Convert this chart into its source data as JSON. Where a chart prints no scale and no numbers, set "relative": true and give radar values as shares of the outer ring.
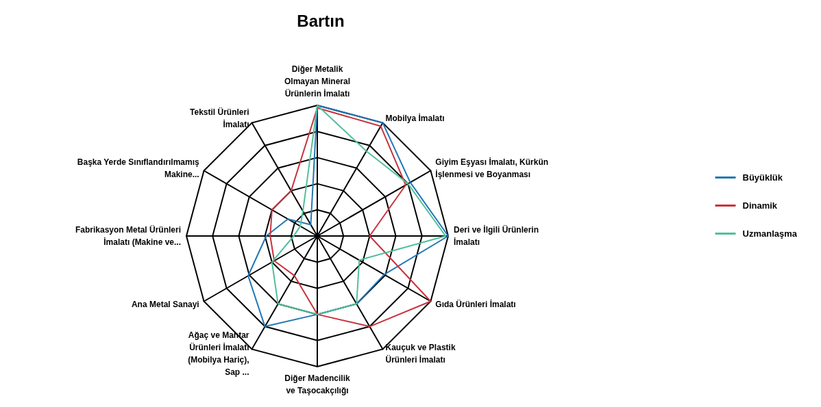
{
  "chart_data": {
    "type": "radar",
    "title": "Bartın",
    "relative": true,
    "legend": "right",
    "marker": "none",
    "line_style": "solid",
    "categories": [
      "Diğer Metalik Olmayan Mineral Ürünlerin İmalatı",
      "Mobilya İmalatı",
      "Giyim Eşyası İmalatı, Kürkün İşlenmesi ve Boyanması",
      "Deri ve İlgili Ürünlerin İmalatı",
      "Gıda Ürünleri İmalatı",
      "Kauçuk ve Plastik Ürünleri İmalatı",
      "Diğer Madencilik ve Taşocakçılığı",
      "Ağaç ve Mantar Ürünleri İmalatı (Mobilya Hariç), Sap ...",
      "Ana Metal Sanayi",
      "Fabrikasyon Metal Ürünleri İmalatı (Makine ve...",
      "Başka Yerde Sınıflandırılmamış Makine...",
      "Tekstil Ürünleri İmalatı"
    ],
    "series": [
      {
        "name": "Büyüklük",
        "color": "#1f77b4",
        "values": [
          1.0,
          1.0,
          0.82,
          1.0,
          0.59,
          0.6,
          0.6,
          0.8,
          0.61,
          0.39,
          0.26,
          0.1
        ]
      },
      {
        "name": "Dinamik",
        "color": "#c8323c",
        "values": [
          0.98,
          0.97,
          0.78,
          0.4,
          1.0,
          0.8,
          0.6,
          0.35,
          0.38,
          0.36,
          0.4,
          0.4
        ]
      },
      {
        "name": "Uzmanlaşma",
        "color": "#50c09a",
        "values": [
          1.0,
          0.75,
          0.8,
          0.98,
          0.37,
          0.6,
          0.6,
          0.6,
          0.4,
          0.18,
          0.15,
          0.22
        ]
      }
    ]
  }
}
